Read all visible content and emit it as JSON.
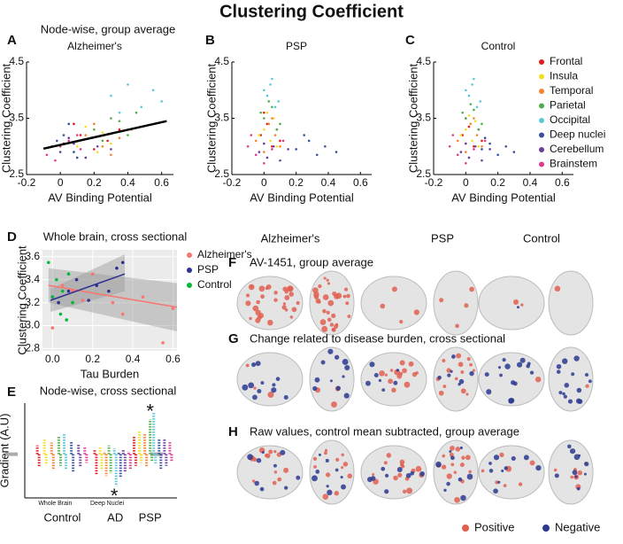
{
  "title": "Clustering Coefficient",
  "chart_data": [
    {
      "type": "scatter",
      "panel": "A",
      "title": "Node-wise, group average",
      "subtitle": "Alzheimer's",
      "xlabel": "AV Binding Potential",
      "ylabel": "Clustering Coefficient",
      "xlim": [
        -0.2,
        0.67
      ],
      "ylim": [
        2.5,
        4.5
      ],
      "xticks": [
        -0.2,
        0,
        0.2,
        0.4,
        0.6
      ],
      "yticks": [
        2.5,
        3.5,
        4.5
      ],
      "fit": {
        "color": "#000000",
        "x": [
          -0.1,
          0.63
        ],
        "y": [
          2.96,
          3.45
        ]
      },
      "series": [
        {
          "color": "#e41a1c",
          "x": [
            0.02,
            0.12,
            0.2,
            0.28,
            0.35,
            0.08
          ],
          "values": [
            3.05,
            3.2,
            2.95,
            3.1,
            3.3,
            3.4
          ]
        },
        {
          "color": "#f2e01f",
          "x": [
            0.1,
            0.18,
            0.25,
            0.3,
            0.15,
            0.22
          ],
          "values": [
            3.0,
            3.15,
            3.25,
            3.05,
            3.35,
            2.9
          ]
        },
        {
          "color": "#f58231",
          "x": [
            0.15,
            0.25,
            0.35,
            0.42,
            0.3,
            0.2
          ],
          "values": [
            3.2,
            3.0,
            3.15,
            3.3,
            2.85,
            3.4
          ]
        },
        {
          "color": "#4daf4a",
          "x": [
            0.2,
            0.3,
            0.4,
            0.45,
            0.25,
            0.35
          ],
          "values": [
            3.3,
            3.5,
            3.2,
            3.6,
            3.1,
            3.45
          ]
        },
        {
          "color": "#5bc8d8",
          "x": [
            0.3,
            0.4,
            0.48,
            0.55,
            0.35,
            0.6
          ],
          "values": [
            3.9,
            4.1,
            3.7,
            4.0,
            3.6,
            3.8
          ]
        },
        {
          "color": "#3a4fa0",
          "x": [
            -0.05,
            0.02,
            0.1,
            0.05,
            -0.02,
            0.08
          ],
          "values": [
            3.0,
            3.2,
            2.8,
            3.4,
            3.1,
            2.9
          ]
        },
        {
          "color": "#6a3d9a",
          "x": [
            0.0,
            0.08,
            0.15,
            0.22,
            0.05,
            0.3
          ],
          "values": [
            2.9,
            3.05,
            2.8,
            3.0,
            3.15,
            2.95
          ]
        },
        {
          "color": "#e0388f",
          "x": [
            -0.08,
            0.0,
            0.05,
            0.12,
            -0.03,
            0.1
          ],
          "values": [
            2.85,
            3.0,
            3.1,
            2.95,
            2.75,
            3.2
          ]
        }
      ]
    },
    {
      "type": "scatter",
      "panel": "B",
      "subtitle": "PSP",
      "xlabel": "AV Binding Potential",
      "ylabel": "Clustering Coefficient",
      "xlim": [
        -0.2,
        0.67
      ],
      "ylim": [
        2.5,
        4.5
      ],
      "xticks": [
        -0.2,
        0,
        0.2,
        0.4,
        0.6
      ],
      "yticks": [
        2.5,
        3.5,
        4.5
      ],
      "series": [
        {
          "color": "#e41a1c",
          "x": [
            -0.02,
            0.02,
            0.05,
            0.08,
            0.0,
            0.1
          ],
          "values": [
            3.2,
            3.4,
            3.0,
            3.3,
            3.6,
            3.1
          ]
        },
        {
          "color": "#f2e01f",
          "x": [
            0.0,
            0.04,
            0.06,
            -0.03,
            0.08,
            0.02
          ],
          "values": [
            3.3,
            3.1,
            3.5,
            3.2,
            3.0,
            3.6
          ]
        },
        {
          "color": "#f58231",
          "x": [
            -0.05,
            0.0,
            0.03,
            0.07,
            0.1,
            0.05
          ],
          "values": [
            3.1,
            2.9,
            3.4,
            3.2,
            3.0,
            3.5
          ]
        },
        {
          "color": "#4daf4a",
          "x": [
            0.0,
            0.05,
            0.08,
            -0.02,
            0.1,
            0.03
          ],
          "values": [
            3.5,
            3.7,
            3.3,
            3.6,
            3.4,
            3.8
          ]
        },
        {
          "color": "#5bc8d8",
          "x": [
            0.02,
            0.05,
            0.07,
            0.0,
            0.09,
            0.04
          ],
          "values": [
            3.9,
            4.2,
            3.7,
            4.0,
            3.8,
            4.1
          ]
        },
        {
          "color": "#3a4fa0",
          "x": [
            0.2,
            0.28,
            0.33,
            0.38,
            0.45,
            0.25
          ],
          "values": [
            2.95,
            3.1,
            2.85,
            3.0,
            2.9,
            3.2
          ]
        },
        {
          "color": "#6a3d9a",
          "x": [
            -0.03,
            0.02,
            0.06,
            0.1,
            0.15,
            0.0
          ],
          "values": [
            2.9,
            2.8,
            3.0,
            2.75,
            2.95,
            3.05
          ]
        },
        {
          "color": "#e0388f",
          "x": [
            -0.1,
            -0.05,
            0.0,
            0.12,
            -0.08,
            0.05
          ],
          "values": [
            3.0,
            2.85,
            2.7,
            3.1,
            3.2,
            2.95
          ]
        }
      ]
    },
    {
      "type": "scatter",
      "panel": "C",
      "subtitle": "Control",
      "xlabel": "AV Binding Potential",
      "ylabel": "Clustering Coefficient",
      "xlim": [
        -0.2,
        0.67
      ],
      "ylim": [
        2.5,
        4.5
      ],
      "xticks": [
        -0.2,
        0,
        0.2,
        0.4,
        0.6
      ],
      "yticks": [
        2.5,
        3.5,
        4.5
      ],
      "legend": "outside-right",
      "series": [
        {
          "name": "Frontal",
          "color": "#e41a1c",
          "x": [
            -0.02,
            0.02,
            0.05,
            0.08,
            0.0,
            0.1
          ],
          "values": [
            3.2,
            3.35,
            3.0,
            3.3,
            3.5,
            3.1
          ]
        },
        {
          "name": "Insula",
          "color": "#f2e01f",
          "x": [
            0.0,
            0.04,
            0.06,
            -0.03,
            0.08,
            0.02
          ],
          "values": [
            3.3,
            3.1,
            3.45,
            3.2,
            3.0,
            3.55
          ]
        },
        {
          "name": "Temporal",
          "color": "#f58231",
          "x": [
            -0.05,
            0.0,
            0.03,
            0.07,
            0.1,
            0.05
          ],
          "values": [
            3.1,
            2.9,
            3.4,
            3.2,
            3.0,
            3.5
          ]
        },
        {
          "name": "Parietal",
          "color": "#4daf4a",
          "x": [
            0.0,
            0.05,
            0.08,
            -0.02,
            0.1,
            0.03
          ],
          "values": [
            3.5,
            3.65,
            3.3,
            3.6,
            3.4,
            3.75
          ]
        },
        {
          "name": "Occipital",
          "color": "#5bc8d8",
          "x": [
            0.02,
            0.05,
            0.07,
            0.0,
            0.09,
            0.04
          ],
          "values": [
            3.9,
            4.2,
            3.7,
            4.0,
            3.8,
            4.1
          ]
        },
        {
          "name": "Deep nuclei",
          "color": "#3a4fa0",
          "x": [
            0.1,
            0.15,
            0.2,
            0.25,
            0.3,
            0.12
          ],
          "values": [
            2.95,
            3.05,
            2.85,
            3.0,
            2.9,
            3.15
          ]
        },
        {
          "name": "Cerebellum",
          "color": "#6a3d9a",
          "x": [
            -0.03,
            0.02,
            0.06,
            0.1,
            0.15,
            0.0
          ],
          "values": [
            2.9,
            2.8,
            3.0,
            2.75,
            2.95,
            3.05
          ]
        },
        {
          "name": "Brainstem",
          "color": "#e0388f",
          "x": [
            -0.1,
            -0.05,
            0.0,
            0.12,
            -0.08,
            0.05
          ],
          "values": [
            3.0,
            2.85,
            2.7,
            3.1,
            3.2,
            2.95
          ]
        }
      ]
    },
    {
      "type": "scatter",
      "panel": "D",
      "title": "Whole brain, cross sectional",
      "xlabel": "Tau Burden",
      "ylabel": "Clustering Coefficient",
      "xlim": [
        -0.05,
        0.62
      ],
      "ylim": [
        2.78,
        3.66
      ],
      "xticks": [
        {
          "value": 0,
          "label": "0.0"
        },
        0.2,
        0.4,
        0.6
      ],
      "yticks": [
        {
          "value": 2.8,
          "label": "2.8"
        },
        {
          "value": 3,
          "label": "3.0"
        },
        3.2,
        3.4,
        3.6
      ],
      "grid": true,
      "legend": "outside-right",
      "series": [
        {
          "name": "Alzheimer's",
          "color": "#f8766d",
          "x": [
            0.0,
            0.05,
            0.1,
            0.15,
            0.2,
            0.3,
            0.35,
            0.45,
            0.55,
            0.6
          ],
          "values": [
            2.98,
            3.35,
            3.3,
            3.22,
            3.45,
            3.2,
            3.1,
            3.25,
            2.85,
            3.15
          ],
          "fit": {
            "x": [
              -0.02,
              0.62
            ],
            "y": [
              3.35,
              3.16
            ],
            "lower": [
              3.2,
              2.95
            ],
            "upper": [
              3.5,
              3.37
            ]
          }
        },
        {
          "name": "PSP",
          "color": "#2e3192",
          "x": [
            0.0,
            0.03,
            0.08,
            0.12,
            0.18,
            0.22,
            0.28,
            0.32,
            0.35
          ],
          "values": [
            3.25,
            3.2,
            3.3,
            3.4,
            3.22,
            3.35,
            3.3,
            3.5,
            3.55
          ],
          "fit": {
            "x": [
              -0.01,
              0.36
            ],
            "y": [
              3.22,
              3.45
            ],
            "lower": [
              3.12,
              3.3
            ],
            "upper": [
              3.32,
              3.62
            ]
          }
        },
        {
          "name": "Control",
          "color": "#00ba38",
          "x": [
            -0.02,
            0.0,
            0.02,
            0.04,
            0.05,
            0.07,
            0.08,
            0.1
          ],
          "values": [
            3.55,
            3.25,
            3.4,
            3.1,
            3.3,
            3.05,
            3.45,
            3.2
          ]
        }
      ]
    },
    {
      "type": "strip",
      "panel": "E",
      "title": "Node-wise, cross sectional",
      "ylabel": "Gradient (A.U)",
      "xlim": [
        0,
        8.5
      ],
      "ylim": [
        -3,
        3.5
      ],
      "reference": 0,
      "xticks": [
        {
          "value": 1.7,
          "label": "Whole Brain"
        },
        {
          "value": 4.6,
          "label": "Deep Nuclei"
        }
      ],
      "groups": [
        {
          "label": "Control",
          "x": 2.1
        },
        {
          "label": "AD",
          "x": 5.05
        },
        {
          "label": "PSP",
          "x": 7.0
        }
      ],
      "annotations": [
        {
          "text": "*",
          "x": 7.0,
          "y": 3.1
        },
        {
          "text": "*",
          "x": 5.0,
          "y": -2.7
        }
      ],
      "series": [
        {
          "color": "#e41a1c",
          "x": [
            0.7,
            0.8,
            3.9,
            4.0,
            6.1,
            6.2
          ],
          "values": [
            0.6,
            -0.9,
            0.3,
            -1.4,
            1.2,
            -0.8
          ]
        },
        {
          "color": "#f2e01f",
          "x": [
            1.1,
            1.2,
            4.2,
            4.3,
            6.4,
            6.5
          ],
          "values": [
            1.0,
            -0.7,
            0.5,
            -1.1,
            1.6,
            -0.6
          ]
        },
        {
          "color": "#f58231",
          "x": [
            1.5,
            1.6,
            4.45,
            4.55,
            6.7,
            6.8
          ],
          "values": [
            0.8,
            -1.1,
            0.2,
            -1.5,
            1.4,
            -0.9
          ]
        },
        {
          "color": "#4daf4a",
          "x": [
            1.9,
            2.0,
            4.7,
            4.8,
            7.0,
            7.1
          ],
          "values": [
            1.2,
            -0.8,
            0.6,
            -1.3,
            2.4,
            -0.5
          ]
        },
        {
          "color": "#5bc8d8",
          "x": [
            2.2,
            2.3,
            5.0,
            5.1,
            7.2,
            7.3
          ],
          "values": [
            1.4,
            -1.0,
            0.4,
            -2.2,
            2.9,
            -0.7
          ]
        },
        {
          "color": "#3a4fa0",
          "x": [
            2.6,
            2.7,
            5.25,
            5.35,
            7.5,
            7.6
          ],
          "values": [
            0.9,
            -1.2,
            0.1,
            -1.6,
            1.1,
            -1.0
          ]
        },
        {
          "color": "#6a3d9a",
          "x": [
            3.0,
            3.1,
            5.5,
            5.6,
            7.8,
            7.9
          ],
          "values": [
            0.7,
            -0.9,
            0.3,
            -1.2,
            1.0,
            -0.8
          ]
        },
        {
          "color": "#e0388f",
          "x": [
            3.35,
            3.45,
            5.8,
            5.9,
            8.1,
            8.2
          ],
          "values": [
            0.5,
            -0.6,
            0.2,
            -1.0,
            0.9,
            -0.5
          ]
        }
      ]
    }
  ],
  "brain_panels": {
    "column_headers": [
      "Alzheimer's",
      "PSP",
      "Control"
    ],
    "rows": [
      {
        "letter": "F",
        "title": "AV-1451, group average"
      },
      {
        "letter": "G",
        "title": "Change related to disease burden, cross sectional"
      },
      {
        "letter": "H",
        "title": "Raw values, control mean subtracted, group average"
      }
    ],
    "legend": [
      {
        "label": "Positive",
        "color": "#e06050"
      },
      {
        "label": "Negative",
        "color": "#2b3990"
      }
    ]
  }
}
